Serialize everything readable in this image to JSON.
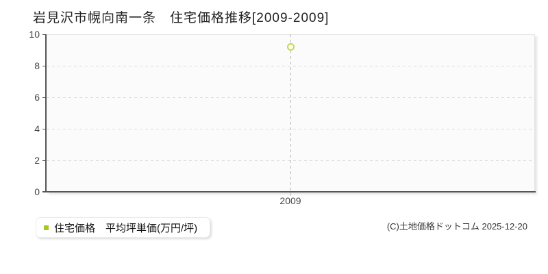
{
  "header": {
    "title": "岩見沢市幌向南一条　住宅価格推移[2009-2009]"
  },
  "legend": {
    "label": "住宅価格　平均坪単価(万円/坪)",
    "marker_color": "#a4ca1e"
  },
  "footer": {
    "copyright": "(C)土地価格ドットコム 2025-12-20"
  },
  "colors": {
    "axis": "#555555",
    "tick_label": "#444444",
    "h_gridline": "#dcdcdc",
    "v_gridline": "#b8b8b8",
    "plot_background": "#fbfbfb",
    "plot_border": "#e4e4e4",
    "point_stroke": "#c3d94e",
    "point_fill": "#ffffff"
  },
  "chart_data": {
    "type": "scatter",
    "title": "岩見沢市幌向南一条　住宅価格推移[2009-2009]",
    "categories": [
      "2009"
    ],
    "series": [
      {
        "name": "住宅価格　平均坪単価(万円/坪)",
        "values": [
          9.2
        ]
      }
    ],
    "xlabel": "",
    "ylabel": "",
    "ylim": [
      0,
      10
    ],
    "yticks": [
      0,
      2,
      4,
      6,
      8,
      10
    ],
    "grid": true,
    "gridline_style": "dashed",
    "legend_position": "bottom-left",
    "marker": "open-circle",
    "marker_color": "#c3d94e"
  }
}
